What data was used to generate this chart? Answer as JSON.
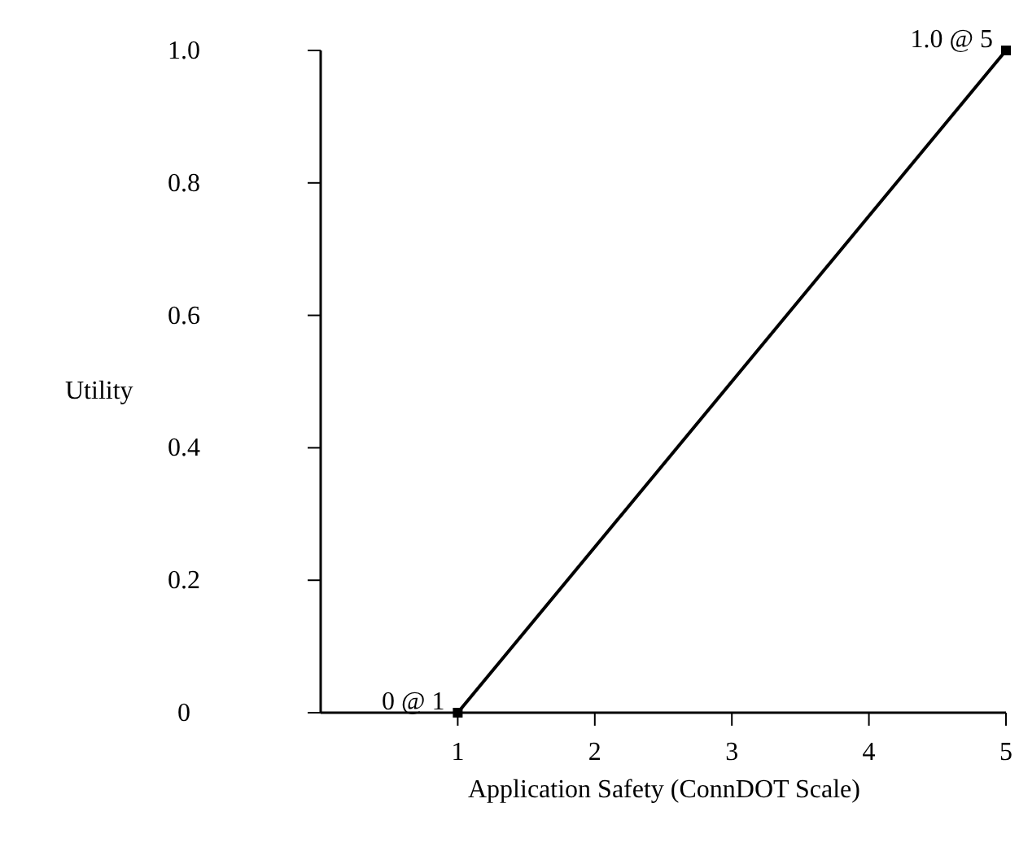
{
  "chart_data": {
    "type": "line",
    "xlabel": "Application Safety (ConnDOT Scale)",
    "ylabel": "Utility",
    "x": [
      1,
      5
    ],
    "values": [
      0,
      1
    ],
    "color": "#000000",
    "marker": "square",
    "line_style": "solid",
    "xlim": [
      0,
      5
    ],
    "xticks": [
      1,
      2,
      3,
      4,
      5
    ],
    "ylim": [
      0,
      1
    ],
    "yticks": [
      0,
      0.2,
      0.4,
      0.6,
      0.8,
      {
        "value": 1,
        "label": "1.0"
      }
    ],
    "annotations": [
      {
        "text": "0 @ 1",
        "x": 1,
        "y": 0
      },
      {
        "text": "1.0 @ 5",
        "x": 5,
        "y": 1
      }
    ],
    "grid": false
  }
}
